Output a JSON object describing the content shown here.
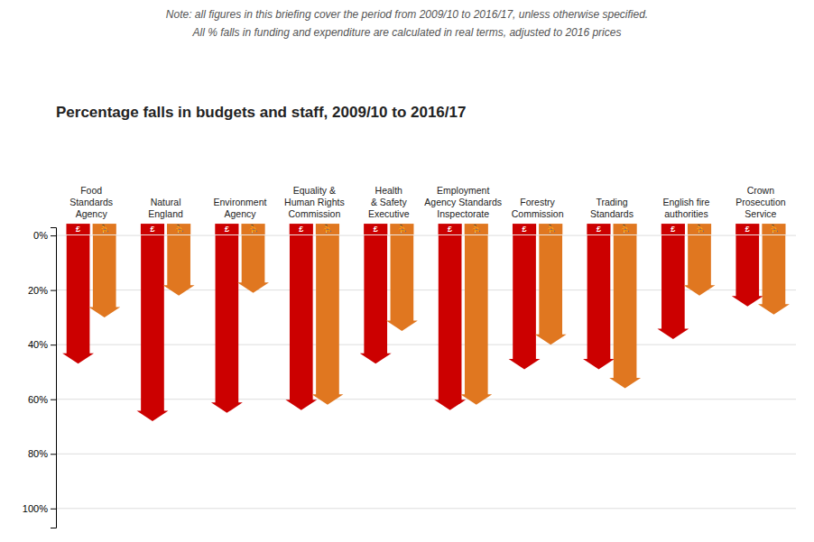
{
  "chart_data": {
    "type": "bar",
    "title": "Percentage falls in budgets and staff, 2009/10 to 2016/17",
    "annotations": [
      "Note: all figures in this briefing cover the period from 2009/10 to 2016/17, unless otherwise specified.",
      "All % falls in funding and expenditure are calculated in real terms, adjusted to 2016 prices"
    ],
    "categories": [
      "Food\nStandards\nAgency",
      "Natural\nEngland",
      "Environment\nAgency",
      "Equality &\nHuman Rights\nCommission",
      "Health\n& Safety\nExecutive",
      "Employment\nAgency Standards\nInspectorate",
      "Forestry\nCommission",
      "Trading\nStandards",
      "English fire\nauthorities",
      "Crown\nProsecution\nService"
    ],
    "series": [
      {
        "name": "£",
        "color": "#cc0000",
        "values": [
          47,
          68,
          65,
          64,
          47,
          64,
          49,
          49,
          38,
          26
        ]
      },
      {
        "name": "⛹",
        "color": "#e07720",
        "values": [
          30,
          22,
          21,
          62,
          35,
          62,
          40,
          56,
          22,
          29
        ]
      }
    ],
    "ylim": [
      107,
      -3
    ],
    "yticks": [
      {
        "value": 0,
        "label": "0%"
      },
      {
        "value": 20,
        "label": "20%"
      },
      {
        "value": 40,
        "label": "40%"
      },
      {
        "value": 60,
        "label": "60%"
      },
      {
        "value": 80,
        "label": "80%"
      },
      {
        "value": 100,
        "label": "100%"
      }
    ],
    "grid": true
  }
}
